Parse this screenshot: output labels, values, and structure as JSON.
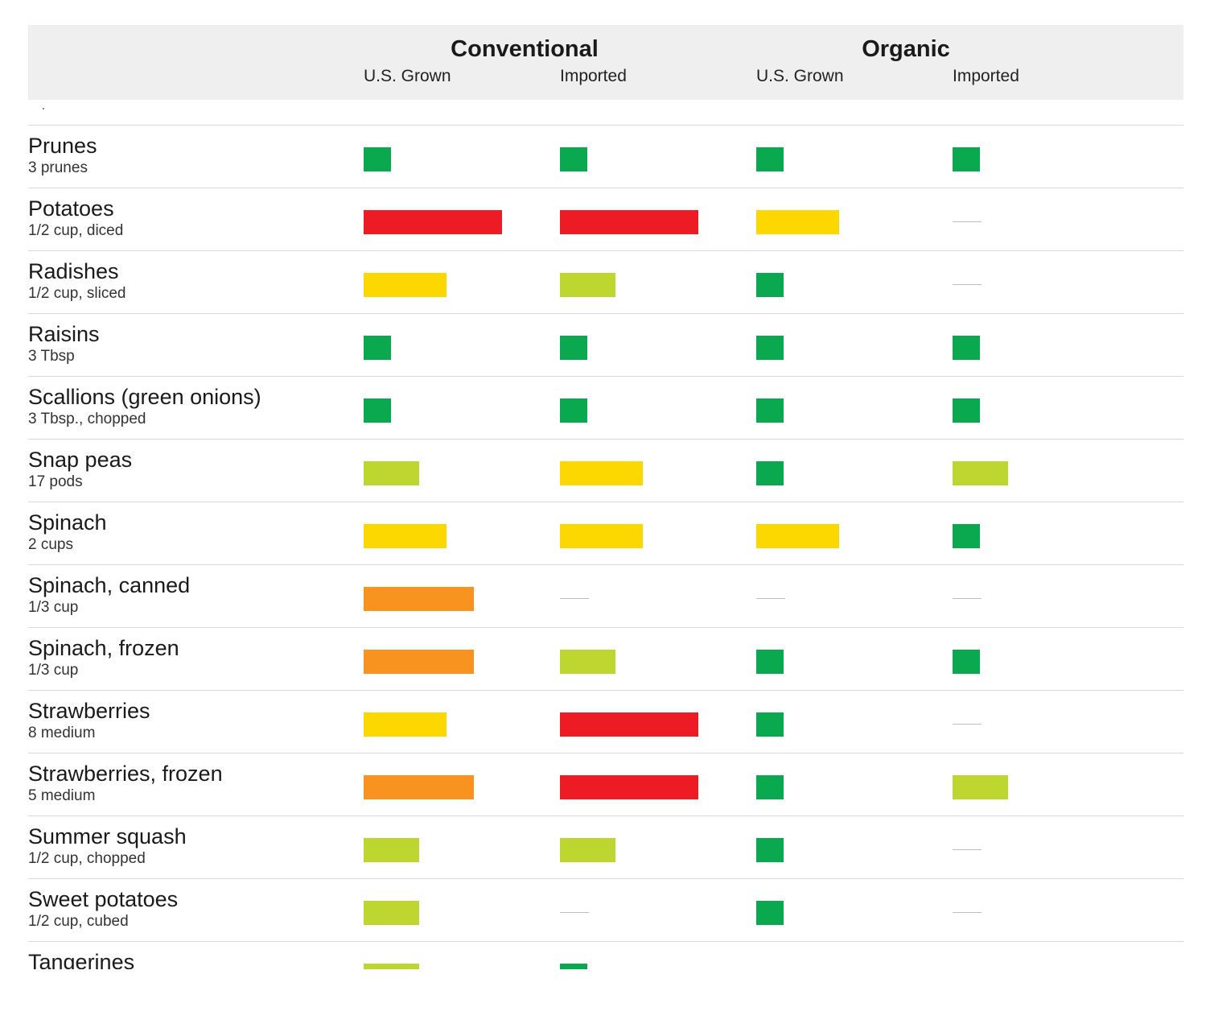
{
  "chart_data": {
    "type": "table",
    "groups": [
      {
        "title": "Conventional",
        "columns": [
          "U.S. Grown",
          "Imported"
        ]
      },
      {
        "title": "Organic",
        "columns": [
          "U.S. Grown",
          "Imported"
        ]
      }
    ],
    "levels": {
      "1": {
        "color": "#0aa84f"
      },
      "2": {
        "color": "#bdd630"
      },
      "3": {
        "color": "#fdd700"
      },
      "4": {
        "color": "#f7931e"
      },
      "5": {
        "color": "#ed1c24"
      }
    },
    "missing_symbol": "—",
    "rows": [
      {
        "name": "Prunes",
        "serving": "3 prunes",
        "values": [
          1,
          1,
          1,
          1
        ]
      },
      {
        "name": "Potatoes",
        "serving": "1/2 cup, diced",
        "values": [
          5,
          5,
          3,
          null
        ]
      },
      {
        "name": "Radishes",
        "serving": "1/2 cup, sliced",
        "values": [
          3,
          2,
          1,
          null
        ]
      },
      {
        "name": "Raisins",
        "serving": "3 Tbsp",
        "values": [
          1,
          1,
          1,
          1
        ]
      },
      {
        "name": "Scallions (green onions)",
        "serving": "3 Tbsp., chopped",
        "values": [
          1,
          1,
          1,
          1
        ]
      },
      {
        "name": "Snap peas",
        "serving": "17 pods",
        "values": [
          2,
          3,
          1,
          2
        ]
      },
      {
        "name": "Spinach",
        "serving": "2 cups",
        "values": [
          3,
          3,
          3,
          1
        ]
      },
      {
        "name": "Spinach, canned",
        "serving": "1/3 cup",
        "values": [
          4,
          null,
          null,
          null
        ]
      },
      {
        "name": "Spinach, frozen",
        "serving": "1/3 cup",
        "values": [
          4,
          2,
          1,
          1
        ]
      },
      {
        "name": "Strawberries",
        "serving": "8 medium",
        "values": [
          3,
          5,
          1,
          null
        ]
      },
      {
        "name": "Strawberries, frozen",
        "serving": "5 medium",
        "values": [
          4,
          5,
          1,
          2
        ]
      },
      {
        "name": "Summer squash",
        "serving": "1/2 cup, chopped",
        "values": [
          2,
          2,
          1,
          null
        ]
      },
      {
        "name": "Sweet potatoes",
        "serving": "1/2 cup, cubed",
        "values": [
          2,
          null,
          1,
          null
        ]
      },
      {
        "name": "Tangerines",
        "serving": "",
        "values": [
          2,
          1,
          null,
          null
        ]
      }
    ]
  }
}
